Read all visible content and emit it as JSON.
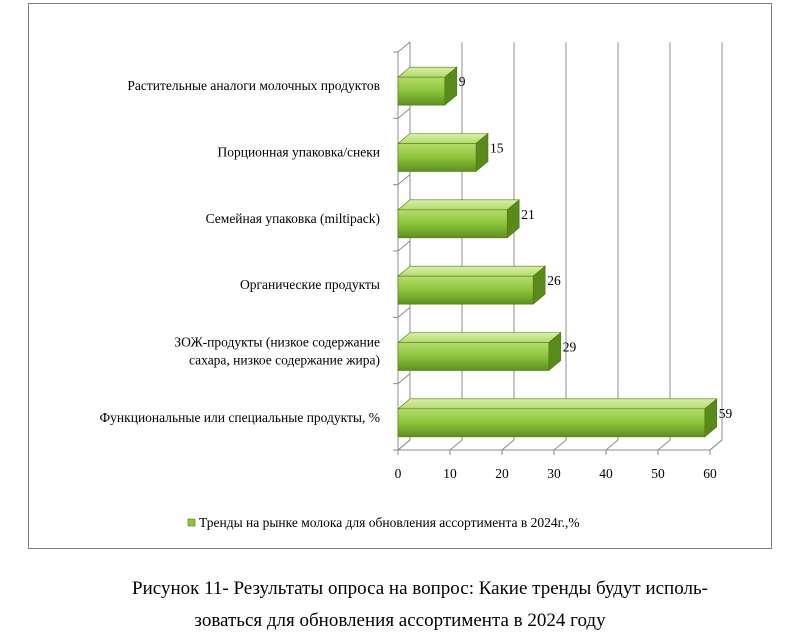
{
  "chart_data": {
    "type": "bar",
    "orientation": "horizontal",
    "style": "3d",
    "categories": [
      "Растительные аналоги молочных продуктов",
      "Порционная упаковка/снеки",
      "Семейная упаковка (miltipack)",
      "Органические продукты",
      "ЗОЖ-продукты (низкое содержание сахара, низкое содержание жира)",
      "Функциональные или специальные продукты, %"
    ],
    "category_lines": [
      [
        "Растительные аналоги молочных продуктов"
      ],
      [
        "Порционная упаковка/снеки"
      ],
      [
        "Семейная упаковка (miltipack)"
      ],
      [
        "Органические продукты"
      ],
      [
        "ЗОЖ-продукты (низкое содержание",
        "сахара, низкое содержание жира)"
      ],
      [
        "Функциональные или специальные продукты, %"
      ]
    ],
    "series": [
      {
        "name": "Тренды на рынке молока для обновления ассортимента в 2024г.,%",
        "values": [
          9,
          15,
          21,
          26,
          29,
          59
        ],
        "color": "#8dc63f"
      }
    ],
    "data_labels": [
      "9",
      "15",
      "21",
      "26",
      "29",
      "59"
    ],
    "x_ticks": [
      "0",
      "10",
      "20",
      "30",
      "40",
      "50",
      "60"
    ],
    "xlim": [
      0,
      60
    ],
    "grid": true,
    "legend_position": "bottom"
  },
  "caption": {
    "line1": "Рисунок 11- Результаты опроса на вопрос: Какие тренды будут исполь-",
    "line2": "зоваться для обновления ассортимента в 2024 году"
  }
}
